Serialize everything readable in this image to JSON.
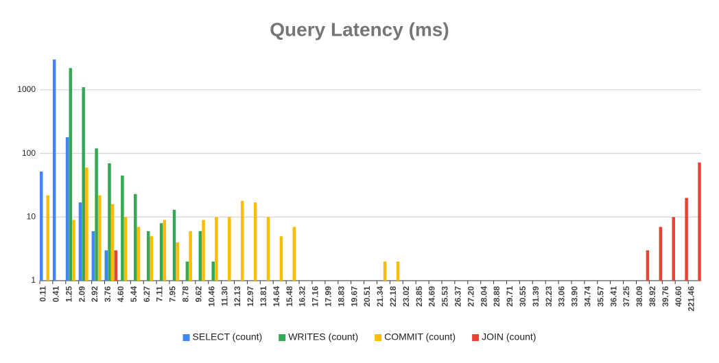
{
  "chart_data": {
    "type": "bar",
    "title": "Query Latency (ms)",
    "log_y": true,
    "grid": true,
    "legend": "bottom",
    "categories": [
      "0.11",
      "0.41",
      "1.25",
      "2.09",
      "2.92",
      "3.76",
      "4.60",
      "5.44",
      "6.27",
      "7.11",
      "7.95",
      "8.78",
      "9.62",
      "10.46",
      "11.30",
      "12.13",
      "12.97",
      "13.81",
      "14.64",
      "15.48",
      "16.32",
      "17.16",
      "17.99",
      "18.83",
      "19.67",
      "20.51",
      "21.34",
      "22.18",
      "23.02",
      "23.85",
      "24.69",
      "25.53",
      "26.37",
      "27.20",
      "28.04",
      "28.88",
      "29.71",
      "30.55",
      "31.39",
      "32.23",
      "33.06",
      "33.90",
      "34.74",
      "35.57",
      "36.41",
      "37.25",
      "38.09",
      "38.92",
      "39.76",
      "40.60",
      "221.46"
    ],
    "ylim": [
      1,
      3500
    ],
    "yticks": [
      1,
      10,
      100,
      1000
    ],
    "series": [
      {
        "name": "SELECT (count)",
        "color": "#4285f4",
        "values": [
          52,
          3000,
          180,
          17,
          6,
          3,
          null,
          null,
          null,
          null,
          null,
          null,
          null,
          null,
          null,
          null,
          null,
          null,
          null,
          null,
          null,
          null,
          null,
          null,
          null,
          null,
          null,
          null,
          null,
          null,
          null,
          null,
          null,
          null,
          null,
          null,
          null,
          null,
          null,
          null,
          null,
          null,
          null,
          null,
          null,
          null,
          null,
          null,
          null,
          null,
          null
        ]
      },
      {
        "name": "WRITES (count)",
        "color": "#34a853",
        "values": [
          null,
          null,
          2200,
          1100,
          120,
          70,
          45,
          23,
          6,
          8,
          13,
          2,
          6,
          2,
          null,
          null,
          null,
          null,
          null,
          null,
          null,
          null,
          null,
          null,
          null,
          null,
          null,
          null,
          null,
          null,
          null,
          null,
          null,
          null,
          null,
          null,
          null,
          null,
          null,
          null,
          null,
          null,
          null,
          null,
          null,
          null,
          null,
          null,
          null,
          null,
          null
        ]
      },
      {
        "name": "COMMIT (count)",
        "color": "#fbbc04",
        "values": [
          22,
          null,
          9,
          60,
          22,
          16,
          10,
          7,
          5,
          9,
          4,
          6,
          9,
          10,
          10,
          18,
          17,
          10,
          5,
          7,
          null,
          null,
          null,
          null,
          null,
          null,
          2,
          2,
          null,
          null,
          null,
          null,
          null,
          null,
          null,
          null,
          null,
          null,
          null,
          null,
          null,
          null,
          null,
          null,
          null,
          null,
          null,
          null,
          null,
          null,
          null
        ]
      },
      {
        "name": "JOIN (count)",
        "color": "#ea4335",
        "values": [
          null,
          null,
          null,
          null,
          null,
          3,
          null,
          null,
          null,
          null,
          null,
          null,
          null,
          null,
          null,
          null,
          null,
          null,
          null,
          null,
          null,
          null,
          null,
          null,
          null,
          null,
          null,
          null,
          null,
          null,
          null,
          null,
          null,
          null,
          null,
          null,
          null,
          null,
          null,
          null,
          null,
          null,
          null,
          null,
          null,
          null,
          3,
          7,
          10,
          20,
          72
        ]
      }
    ]
  }
}
